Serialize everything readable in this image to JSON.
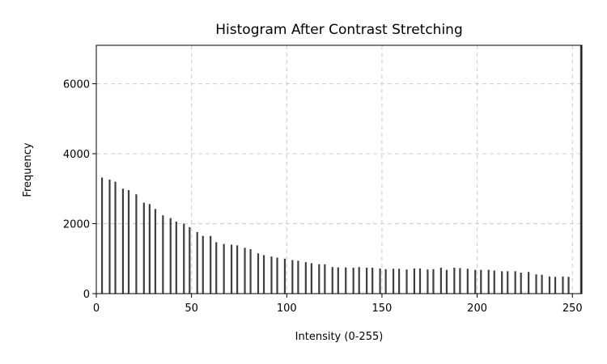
{
  "chart_data": {
    "type": "bar",
    "title": "Histogram After Contrast Stretching",
    "xlabel": "Intensity (0-255)",
    "ylabel": "Frequency",
    "xlim": [
      0,
      255
    ],
    "ylim": [
      0,
      7100
    ],
    "xticks": [
      0,
      50,
      100,
      150,
      200,
      250
    ],
    "yticks": [
      0,
      2000,
      4000,
      6000
    ],
    "grid": true,
    "bar_color": "#3f3f3f",
    "x": [
      3,
      7,
      10,
      14,
      17,
      21,
      25,
      28,
      31,
      35,
      39,
      42,
      46,
      49,
      53,
      56,
      60,
      63,
      67,
      71,
      74,
      78,
      81,
      85,
      88,
      92,
      95,
      99,
      103,
      106,
      110,
      113,
      117,
      120,
      124,
      127,
      131,
      135,
      138,
      142,
      145,
      149,
      152,
      156,
      159,
      163,
      167,
      170,
      174,
      177,
      181,
      184,
      188,
      191,
      195,
      199,
      202,
      206,
      209,
      213,
      216,
      220,
      223,
      227,
      231,
      234,
      238,
      241,
      245,
      248,
      255
    ],
    "values": [
      3320,
      3260,
      3200,
      3000,
      2960,
      2840,
      2600,
      2560,
      2420,
      2240,
      2160,
      2060,
      2000,
      1900,
      1760,
      1650,
      1650,
      1470,
      1420,
      1400,
      1380,
      1310,
      1270,
      1150,
      1100,
      1060,
      1030,
      1000,
      960,
      940,
      900,
      870,
      840,
      840,
      760,
      750,
      750,
      740,
      760,
      740,
      740,
      720,
      700,
      710,
      710,
      690,
      720,
      720,
      690,
      700,
      740,
      680,
      740,
      730,
      710,
      680,
      680,
      680,
      660,
      640,
      640,
      640,
      600,
      620,
      550,
      540,
      490,
      480,
      490,
      480,
      7100
    ]
  }
}
